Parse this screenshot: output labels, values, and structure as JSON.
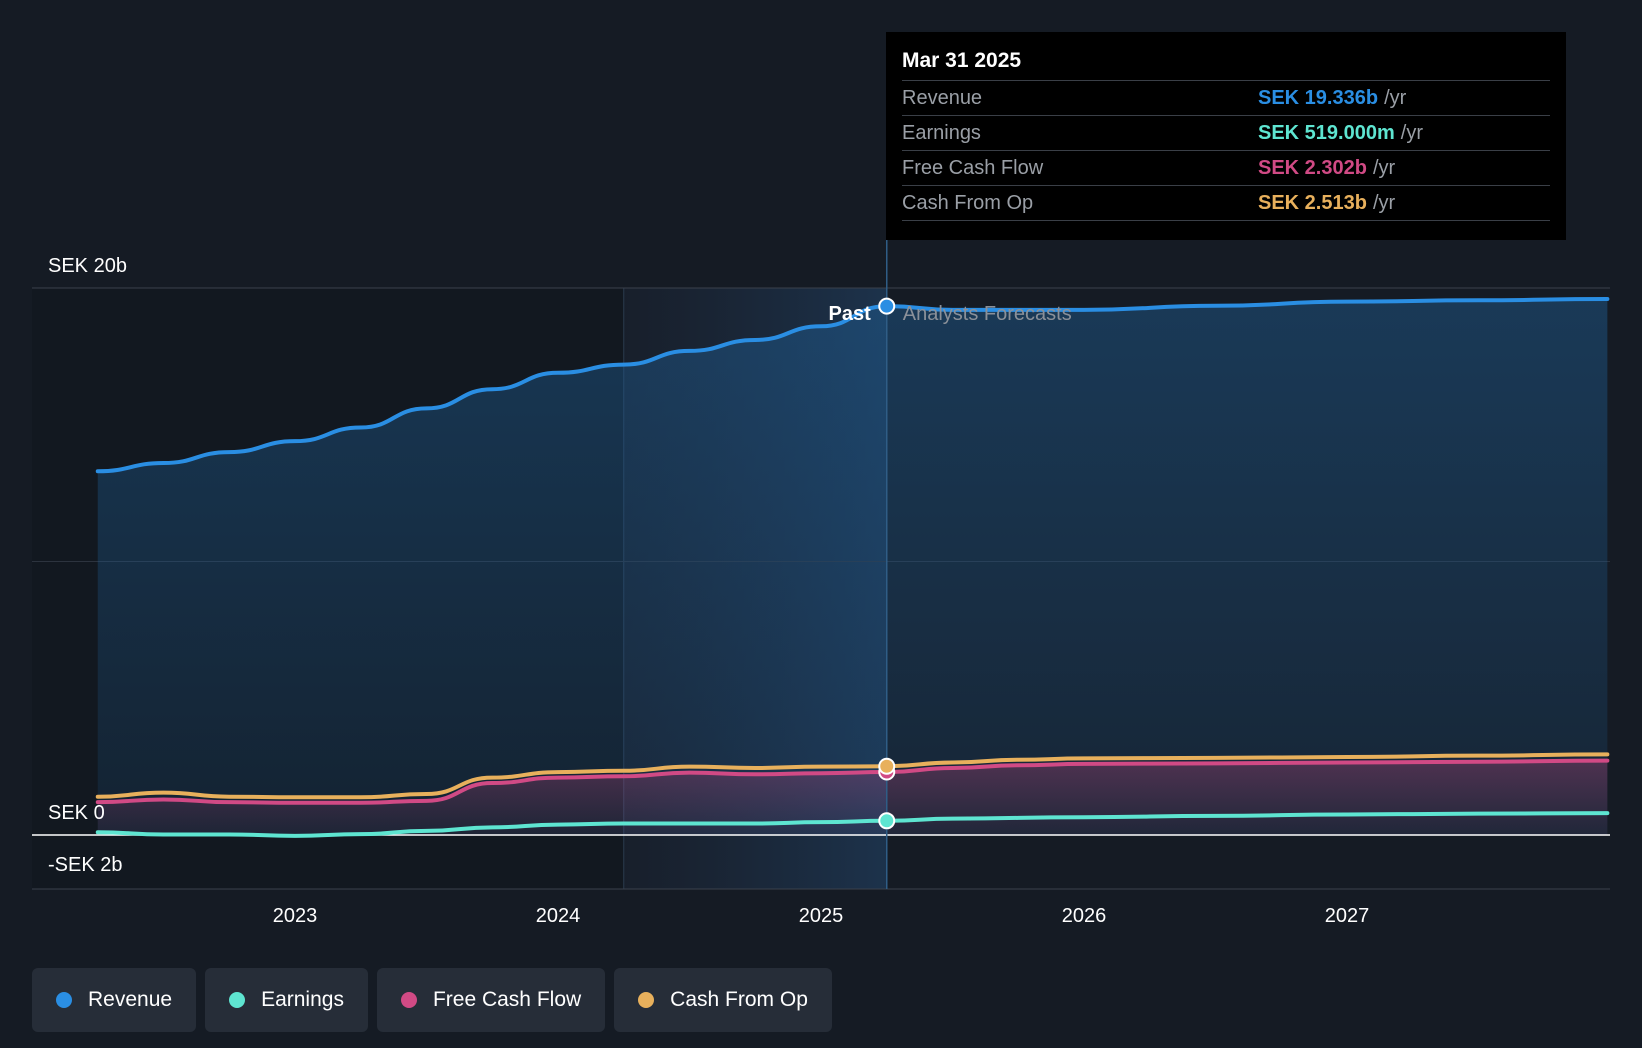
{
  "chart_data": {
    "type": "line",
    "currency": "SEK",
    "y_tick_labels": [
      {
        "value": 20,
        "label": "SEK 20b"
      },
      {
        "value": 0,
        "label": "SEK 0"
      },
      {
        "value": -2,
        "label": "-SEK 2b"
      }
    ],
    "ylim": [
      -2,
      20
    ],
    "y_unit": "billions SEK",
    "x_ticks": [
      "2023",
      "2024",
      "2025",
      "2026",
      "2027"
    ],
    "x_tick_values": [
      2023,
      2024,
      2025,
      2026,
      2027
    ],
    "xlim": [
      2022.0,
      2028.0
    ],
    "past_start": 2022.25,
    "highlight_start": 2024.25,
    "divider": 2025.25,
    "past_label": "Past",
    "forecast_label": "Analysts Forecasts",
    "series": [
      {
        "name": "Revenue",
        "color": "#2a8ee3",
        "fill": true,
        "values": [
          [
            2022.25,
            13.3
          ],
          [
            2022.5,
            13.6
          ],
          [
            2022.75,
            14.0
          ],
          [
            2023.0,
            14.4
          ],
          [
            2023.25,
            14.9
          ],
          [
            2023.5,
            15.6
          ],
          [
            2023.75,
            16.3
          ],
          [
            2024.0,
            16.9
          ],
          [
            2024.25,
            17.2
          ],
          [
            2024.5,
            17.7
          ],
          [
            2024.75,
            18.1
          ],
          [
            2025.0,
            18.6
          ],
          [
            2025.25,
            19.336
          ],
          [
            2025.5,
            19.2
          ],
          [
            2025.75,
            19.2
          ],
          [
            2026.0,
            19.2
          ],
          [
            2026.5,
            19.35
          ],
          [
            2027.0,
            19.5
          ],
          [
            2027.5,
            19.55
          ],
          [
            2027.99,
            19.6
          ]
        ]
      },
      {
        "name": "Earnings",
        "color": "#5ee5d1",
        "fill": false,
        "values": [
          [
            2022.25,
            0.1
          ],
          [
            2022.5,
            0.02
          ],
          [
            2022.75,
            0.02
          ],
          [
            2023.0,
            -0.03
          ],
          [
            2023.25,
            0.03
          ],
          [
            2023.5,
            0.15
          ],
          [
            2023.75,
            0.28
          ],
          [
            2024.0,
            0.38
          ],
          [
            2024.25,
            0.42
          ],
          [
            2024.5,
            0.42
          ],
          [
            2024.75,
            0.42
          ],
          [
            2025.0,
            0.47
          ],
          [
            2025.25,
            0.519
          ],
          [
            2025.5,
            0.6
          ],
          [
            2026.0,
            0.65
          ],
          [
            2026.5,
            0.7
          ],
          [
            2027.0,
            0.75
          ],
          [
            2027.5,
            0.78
          ],
          [
            2027.99,
            0.8
          ]
        ]
      },
      {
        "name": "Free Cash Flow",
        "color": "#d14a85",
        "fill": true,
        "values": [
          [
            2022.25,
            1.2
          ],
          [
            2022.5,
            1.3
          ],
          [
            2022.75,
            1.2
          ],
          [
            2023.0,
            1.18
          ],
          [
            2023.25,
            1.18
          ],
          [
            2023.5,
            1.25
          ],
          [
            2023.75,
            1.9
          ],
          [
            2024.0,
            2.1
          ],
          [
            2024.25,
            2.15
          ],
          [
            2024.5,
            2.28
          ],
          [
            2024.75,
            2.22
          ],
          [
            2025.0,
            2.26
          ],
          [
            2025.25,
            2.302
          ],
          [
            2025.5,
            2.45
          ],
          [
            2025.75,
            2.55
          ],
          [
            2026.0,
            2.6
          ],
          [
            2026.5,
            2.62
          ],
          [
            2027.0,
            2.65
          ],
          [
            2027.5,
            2.68
          ],
          [
            2027.99,
            2.72
          ]
        ]
      },
      {
        "name": "Cash From Op",
        "color": "#e8b05c",
        "fill": false,
        "values": [
          [
            2022.25,
            1.4
          ],
          [
            2022.5,
            1.55
          ],
          [
            2022.75,
            1.4
          ],
          [
            2023.0,
            1.38
          ],
          [
            2023.25,
            1.38
          ],
          [
            2023.5,
            1.5
          ],
          [
            2023.75,
            2.1
          ],
          [
            2024.0,
            2.3
          ],
          [
            2024.25,
            2.35
          ],
          [
            2024.5,
            2.5
          ],
          [
            2024.75,
            2.45
          ],
          [
            2025.0,
            2.5
          ],
          [
            2025.25,
            2.513
          ],
          [
            2025.5,
            2.65
          ],
          [
            2025.75,
            2.75
          ],
          [
            2026.0,
            2.8
          ],
          [
            2026.5,
            2.82
          ],
          [
            2027.0,
            2.85
          ],
          [
            2027.5,
            2.9
          ],
          [
            2027.99,
            2.95
          ]
        ]
      }
    ]
  },
  "tooltip": {
    "date": "Mar 31 2025",
    "rows": [
      {
        "name": "Revenue",
        "value": "SEK 19.336b",
        "unit": "/yr",
        "color": "#2a8ee3"
      },
      {
        "name": "Earnings",
        "value": "SEK 519.000m",
        "unit": "/yr",
        "color": "#5ee5d1"
      },
      {
        "name": "Free Cash Flow",
        "value": "SEK 2.302b",
        "unit": "/yr",
        "color": "#d14a85"
      },
      {
        "name": "Cash From Op",
        "value": "SEK 2.513b",
        "unit": "/yr",
        "color": "#e8b05c"
      }
    ]
  },
  "legend": [
    {
      "label": "Revenue",
      "color": "#2a8ee3"
    },
    {
      "label": "Earnings",
      "color": "#5ee5d1"
    },
    {
      "label": "Free Cash Flow",
      "color": "#d14a85"
    },
    {
      "label": "Cash From Op",
      "color": "#e8b05c"
    }
  ]
}
